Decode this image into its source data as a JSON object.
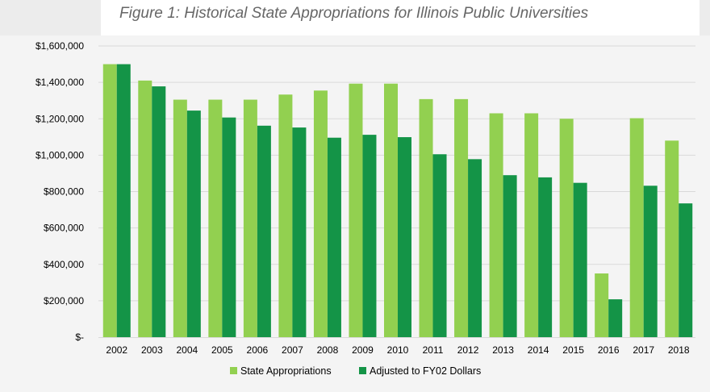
{
  "chart_data": {
    "type": "bar",
    "title": "Figure 1: Historical State Appropriations for Illinois Public Universities",
    "xlabel": "",
    "ylabel": "",
    "ylim": [
      0,
      1600000
    ],
    "y_ticks": [
      0,
      200000,
      400000,
      600000,
      800000,
      1000000,
      1200000,
      1400000,
      1600000
    ],
    "y_tick_labels": [
      "$-",
      "$200,000",
      "$400,000",
      "$600,000",
      "$800,000",
      "$1,000,000",
      "$1,200,000",
      "$1,400,000",
      "$1,600,000"
    ],
    "categories": [
      "2002",
      "2003",
      "2004",
      "2005",
      "2006",
      "2007",
      "2008",
      "2009",
      "2010",
      "2011",
      "2012",
      "2013",
      "2014",
      "2015",
      "2016",
      "2017",
      "2018"
    ],
    "series": [
      {
        "name": "State Appropriations",
        "color": "#92d050",
        "values": [
          1500000,
          1410000,
          1305000,
          1305000,
          1305000,
          1333000,
          1355000,
          1393000,
          1393000,
          1308000,
          1308000,
          1230000,
          1230000,
          1200000,
          350000,
          1203000,
          1080000
        ]
      },
      {
        "name": "Adjusted to FY02 Dollars",
        "color": "#149447",
        "values": [
          1500000,
          1378000,
          1245000,
          1207000,
          1162000,
          1152000,
          1096000,
          1112000,
          1099000,
          1005000,
          978000,
          890000,
          878000,
          848000,
          208000,
          832000,
          735000
        ]
      }
    ],
    "grid": true,
    "legend_position": "bottom"
  }
}
